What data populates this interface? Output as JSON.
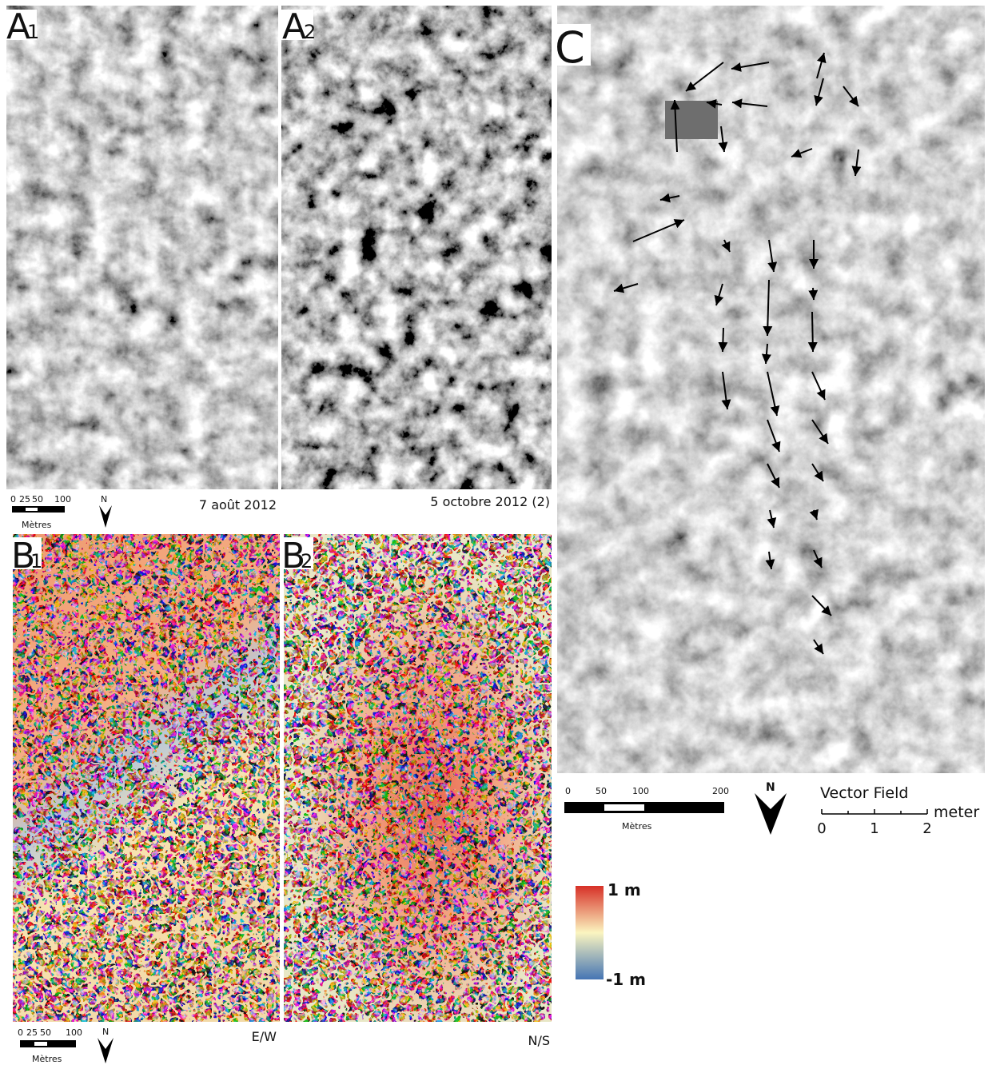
{
  "panels": {
    "a1": {
      "letter": "A",
      "index": "1",
      "date": "7 août 2012"
    },
    "a2": {
      "letter": "A",
      "index": "2",
      "date": "5 octobre 2012 (2)"
    },
    "b1": {
      "letter": "B",
      "index": "1",
      "component": "E/W"
    },
    "b2": {
      "letter": "B",
      "index": "2",
      "component": "N/S"
    },
    "c": {
      "letter": "C"
    }
  },
  "small_scale": {
    "ticks": [
      "0",
      "25",
      "50",
      "100"
    ],
    "unit": "Mètres",
    "north": "N"
  },
  "large_scale": {
    "ticks": [
      "0",
      "50",
      "100",
      "200"
    ],
    "unit": "Mètres",
    "north": "N"
  },
  "vector_legend": {
    "title": "Vector Field",
    "ticks": [
      "0",
      "1",
      "2"
    ],
    "unit": "meter"
  },
  "colorbar": {
    "max_label": "1 m",
    "min_label": "-1 m"
  }
}
